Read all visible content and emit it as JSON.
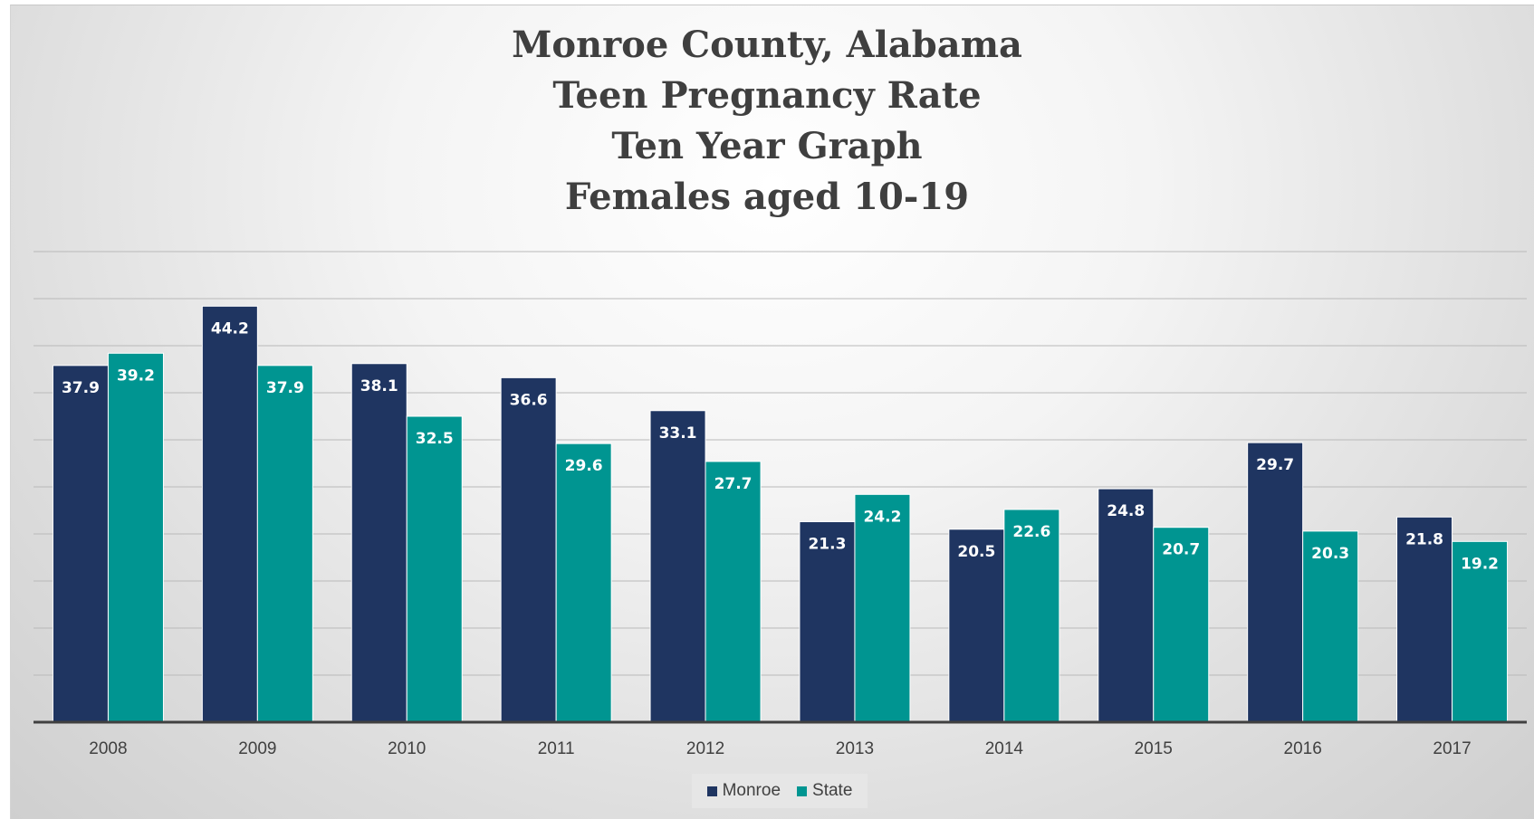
{
  "chart_data": {
    "type": "bar",
    "title_lines": [
      "Monroe County, Alabama",
      "Teen Pregnancy Rate",
      "Ten Year Graph",
      "Females aged 10-19"
    ],
    "categories": [
      "2008",
      "2009",
      "2010",
      "2011",
      "2012",
      "2013",
      "2014",
      "2015",
      "2016",
      "2017"
    ],
    "series": [
      {
        "name": "Monroe",
        "color": "#1f3561",
        "values": [
          37.9,
          44.2,
          38.1,
          36.6,
          33.1,
          21.3,
          20.5,
          24.8,
          29.7,
          21.8
        ]
      },
      {
        "name": "State",
        "color": "#009591",
        "values": [
          39.2,
          37.9,
          32.5,
          29.6,
          27.7,
          24.2,
          22.6,
          20.7,
          20.3,
          19.2
        ]
      }
    ],
    "data_labels": true,
    "ylim": [
      0,
      50
    ],
    "grid": true,
    "legend_position": "bottom",
    "xlabel": "",
    "ylabel": ""
  }
}
